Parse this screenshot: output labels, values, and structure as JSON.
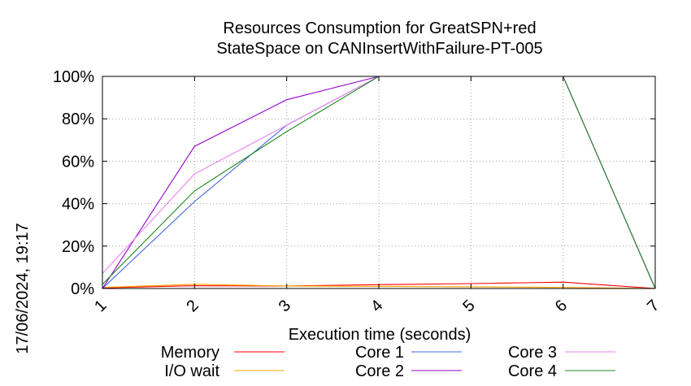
{
  "chart_data": {
    "type": "line",
    "title": [
      "Resources Consumption for GreatSPN+red",
      "StateSpace on CANInsertWithFailure-PT-005"
    ],
    "xlabel": "Execution time (seconds)",
    "ylabel": "",
    "timestamp": "17/06/2024, 19:17",
    "xlim": [
      1,
      7
    ],
    "ylim": [
      0,
      100
    ],
    "x_ticks": [
      "1",
      "2",
      "3",
      "4",
      "5",
      "6",
      "7"
    ],
    "y_ticks": [
      "0%",
      "20%",
      "40%",
      "60%",
      "80%",
      "100%"
    ],
    "grid": true,
    "legend_position": "bottom",
    "series": [
      {
        "name": "Memory",
        "color": "#ff0000",
        "x": [
          1,
          2,
          3,
          4,
          5,
          6,
          7
        ],
        "y": [
          0.3,
          1.3,
          1.2,
          1.8,
          2.3,
          3.0,
          0
        ]
      },
      {
        "name": "I/O wait",
        "color": "#ffa500",
        "x": [
          1,
          2,
          3,
          4,
          5,
          6,
          7
        ],
        "y": [
          0.5,
          2.0,
          1.2,
          1.0,
          0.8,
          0.5,
          0
        ]
      },
      {
        "name": "Core 1",
        "color": "#4169e1",
        "x": [
          1,
          2,
          3,
          4,
          5,
          6,
          7
        ],
        "y": [
          0,
          41,
          77,
          100,
          100,
          100,
          0
        ]
      },
      {
        "name": "Core 2",
        "color": "#9400d3",
        "x": [
          1,
          2,
          3,
          4,
          5,
          6,
          7
        ],
        "y": [
          0,
          67,
          89,
          100,
          100,
          100,
          0
        ]
      },
      {
        "name": "Core 3",
        "color": "#ee82ee",
        "x": [
          1,
          2,
          3,
          4,
          5,
          6,
          7
        ],
        "y": [
          7,
          54,
          77,
          100,
          100,
          100,
          0
        ]
      },
      {
        "name": "Core 4",
        "color": "#228b22",
        "x": [
          1,
          2,
          3,
          4,
          5,
          6,
          7
        ],
        "y": [
          2,
          46,
          74,
          100,
          100,
          100,
          0
        ]
      }
    ]
  }
}
